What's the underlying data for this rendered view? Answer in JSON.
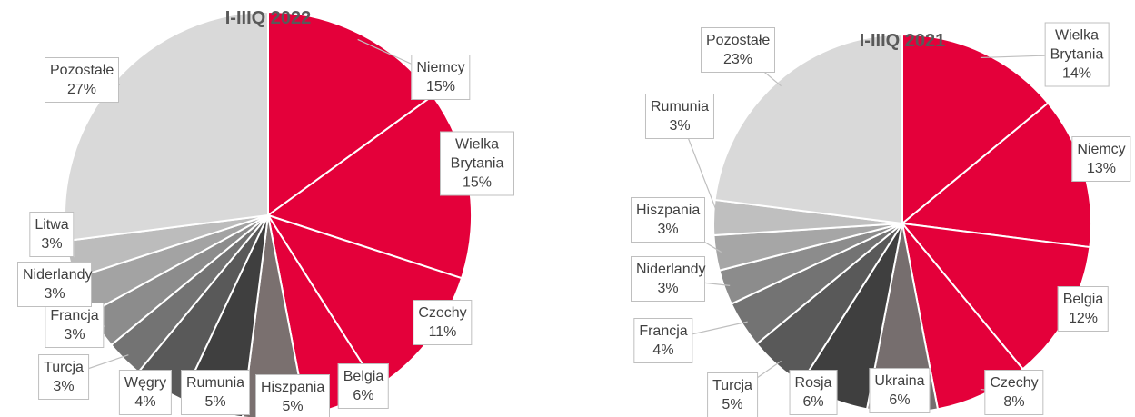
{
  "chart_data": [
    {
      "type": "pie",
      "title": "I-IIIQ 2022",
      "categories": [
        "Niemcy",
        "Wielka Brytania",
        "Czechy",
        "Belgia",
        "Hiszpania",
        "Rumunia",
        "Węgry",
        "Turcja",
        "Francja",
        "Niderlandy",
        "Litwa",
        "Pozostałe"
      ],
      "values": [
        15,
        15,
        11,
        6,
        5,
        5,
        4,
        3,
        3,
        3,
        3,
        27
      ],
      "value_labels": [
        "15%",
        "15%",
        "11%",
        "6%",
        "5%",
        "5%",
        "4%",
        "3%",
        "3%",
        "3%",
        "3%",
        "27%"
      ],
      "colors": [
        "#e4003a",
        "#e4003a",
        "#e4003a",
        "#e4003a",
        "#7a706f",
        "#3f3f3f",
        "#595959",
        "#737373",
        "#8c8c8c",
        "#a3a3a3",
        "#bcbcbc",
        "#d9d9d9"
      ]
    },
    {
      "type": "pie",
      "title": "I-IIIQ 2021",
      "categories": [
        "Wielka Brytania",
        "Niemcy",
        "Belgia",
        "Czechy",
        "Ukraina",
        "Rosja",
        "Turcja",
        "Francja",
        "Niderlandy",
        "Hiszpania",
        "Rumunia",
        "Pozostałe"
      ],
      "values": [
        14,
        13,
        12,
        8,
        6,
        6,
        5,
        4,
        3,
        3,
        3,
        23
      ],
      "value_labels": [
        "14%",
        "13%",
        "12%",
        "8%",
        "6%",
        "6%",
        "5%",
        "4%",
        "3%",
        "3%",
        "3%",
        "23%"
      ],
      "colors": [
        "#e4003a",
        "#e4003a",
        "#e4003a",
        "#e4003a",
        "#766e6e",
        "#3f3f3f",
        "#595959",
        "#737373",
        "#8c8c8c",
        "#a6a6a6",
        "#bfbfbf",
        "#d9d9d9"
      ]
    }
  ]
}
